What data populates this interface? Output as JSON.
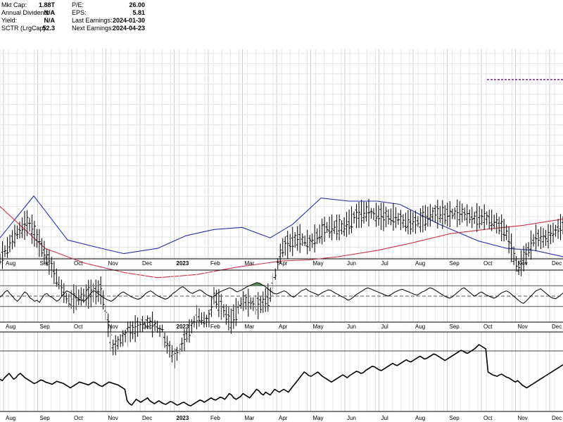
{
  "stats": {
    "col1": [
      {
        "label": "Mkt Cap:",
        "value": "1.88T"
      },
      {
        "label": "Annual Dividend:",
        "value": "N/A"
      },
      {
        "label": "Yield:",
        "value": "N/A"
      },
      {
        "label": "SCTR (LrgCap):",
        "value": "52.3"
      }
    ],
    "col2": [
      {
        "label": "P/E:",
        "value": "26.00"
      },
      {
        "label": "EPS:",
        "value": "5.81"
      },
      {
        "label": "Last Earnings:",
        "value": "2024-01-30"
      },
      {
        "label": "Next Earnings:",
        "value": "2024-04-23"
      }
    ]
  },
  "chart_data": [
    {
      "type": "ohlc",
      "title": "",
      "x_tick_labels": [
        "Aug",
        "Sep",
        "Oct",
        "Nov",
        "Dec",
        "2023",
        "Feb",
        "Mar",
        "Apr",
        "May",
        "Jun",
        "Jul",
        "Aug",
        "Sep",
        "Oct",
        "Nov",
        "Dec"
      ],
      "y_ticks_visible": false,
      "grid": true,
      "y_scale": "log",
      "close_path": [
        [
          0,
          80
        ],
        [
          0.03,
          55
        ],
        [
          0.05,
          45
        ],
        [
          0.08,
          75
        ],
        [
          0.12,
          120
        ],
        [
          0.15,
          115
        ],
        [
          0.18,
          110
        ],
        [
          0.2,
          165
        ],
        [
          0.23,
          150
        ],
        [
          0.26,
          140
        ],
        [
          0.28,
          145
        ],
        [
          0.31,
          175
        ],
        [
          0.33,
          155
        ],
        [
          0.35,
          135
        ],
        [
          0.37,
          140
        ],
        [
          0.38,
          115
        ],
        [
          0.41,
          140
        ],
        [
          0.43,
          120
        ],
        [
          0.46,
          125
        ],
        [
          0.48,
          115
        ],
        [
          0.5,
          70
        ],
        [
          0.53,
          60
        ],
        [
          0.55,
          65
        ],
        [
          0.58,
          50
        ],
        [
          0.61,
          50
        ],
        [
          0.63,
          40
        ],
        [
          0.65,
          35
        ],
        [
          0.68,
          40
        ],
        [
          0.7,
          40
        ],
        [
          0.72,
          45
        ],
        [
          0.74,
          45
        ],
        [
          0.77,
          37
        ],
        [
          0.79,
          38
        ],
        [
          0.82,
          36
        ],
        [
          0.84,
          41
        ],
        [
          0.86,
          40
        ],
        [
          0.88,
          45
        ],
        [
          0.9,
          55
        ],
        [
          0.92,
          90
        ],
        [
          0.95,
          60
        ],
        [
          0.97,
          60
        ],
        [
          1,
          48
        ]
      ],
      "series": [
        {
          "name": "",
          "color": "#2233aa",
          "points": [
            [
              0,
              60
            ],
            [
              0.06,
              20
            ],
            [
              0.12,
              62
            ],
            [
              0.18,
              70
            ],
            [
              0.22,
              75
            ],
            [
              0.28,
              70
            ],
            [
              0.33,
              58
            ],
            [
              0.38,
              52
            ],
            [
              0.43,
              50
            ],
            [
              0.48,
              60
            ],
            [
              0.52,
              47
            ],
            [
              0.57,
              22
            ],
            [
              0.62,
              25
            ],
            [
              0.67,
              25
            ],
            [
              0.71,
              28
            ],
            [
              0.78,
              47
            ],
            [
              0.85,
              63
            ],
            [
              0.9,
              70
            ],
            [
              0.95,
              72
            ],
            [
              1,
              78
            ]
          ]
        },
        {
          "name": "",
          "color": "#cc3344",
          "points": [
            [
              0,
              40
            ],
            [
              0.08,
              80
            ],
            [
              0.15,
              94
            ],
            [
              0.22,
              103
            ],
            [
              0.28,
              108
            ],
            [
              0.35,
              105
            ],
            [
              0.42,
              98
            ],
            [
              0.5,
              92
            ],
            [
              0.55,
              91
            ],
            [
              0.6,
              88
            ],
            [
              0.67,
              82
            ],
            [
              0.73,
              75
            ],
            [
              0.8,
              66
            ],
            [
              0.86,
              62
            ],
            [
              0.93,
              58
            ],
            [
              1,
              52
            ]
          ]
        }
      ],
      "resistance_line": {
        "color": "#7a1f8f",
        "style": "dashed",
        "x_range": [
          0.865,
          1
        ],
        "y": 100
      }
    },
    {
      "type": "line",
      "title": "",
      "x_tick_labels": [
        "Aug",
        "Sep",
        "Oct",
        "Nov",
        "Dec",
        "2023",
        "Feb",
        "Mar",
        "Apr",
        "May",
        "Jun",
        "Jul",
        "Aug",
        "Sep",
        "Oct",
        "Nov",
        "Dec"
      ],
      "ylim": [
        0,
        100
      ],
      "reference_lines": [
        70,
        50,
        30
      ],
      "values": [
        48,
        52,
        58,
        61,
        55,
        50,
        44,
        40,
        45,
        52,
        58,
        55,
        47,
        44,
        40,
        42,
        38,
        46,
        53,
        55,
        50,
        48,
        44,
        40,
        43,
        50,
        55,
        60,
        58,
        55,
        52,
        48,
        44,
        42,
        40,
        44,
        50,
        57,
        60,
        58,
        54,
        50,
        47,
        44,
        42,
        40,
        43,
        47,
        52,
        56,
        58,
        55,
        52,
        49,
        47,
        45,
        44,
        46,
        50,
        55,
        58,
        60,
        57,
        53,
        50,
        48,
        46,
        44,
        46,
        50,
        55,
        58,
        62,
        66,
        68,
        65,
        60,
        57,
        55,
        58,
        60,
        62,
        59,
        55,
        52,
        50,
        48,
        51,
        55,
        58,
        60,
        62,
        64,
        66,
        64,
        61,
        58,
        60,
        62,
        65,
        68,
        70,
        72,
        74,
        76,
        75,
        72,
        70,
        66,
        62,
        58,
        55,
        54,
        56,
        58,
        60,
        58,
        54,
        50,
        48,
        52,
        56,
        60,
        62,
        64,
        60,
        58,
        56,
        54,
        52,
        55,
        58,
        60,
        62,
        61,
        58,
        55,
        53,
        50,
        48,
        45,
        42,
        44,
        48,
        52,
        55,
        58,
        61,
        64,
        66,
        64,
        62,
        60,
        58,
        56,
        54,
        52,
        50,
        52,
        55,
        58,
        60,
        62,
        63,
        61,
        59,
        57,
        55,
        53,
        52,
        55,
        58,
        60,
        63,
        66,
        65,
        62,
        59,
        56,
        53,
        50,
        48,
        46,
        48,
        52,
        56,
        60,
        64,
        66,
        62,
        58,
        54,
        50,
        52,
        56,
        58,
        55,
        52,
        50,
        48,
        46,
        48,
        52,
        56,
        58,
        60,
        58,
        54,
        50,
        46,
        42,
        38,
        36,
        40,
        45,
        50,
        55,
        60,
        62,
        64,
        60,
        56,
        52,
        48,
        46,
        45,
        48,
        52,
        56
      ],
      "fill_above": {
        "threshold": 70,
        "color": "#3a7a3a"
      }
    },
    {
      "type": "line",
      "title": "",
      "x_tick_labels": [
        "Aug",
        "Sep",
        "Oct",
        "Nov",
        "Dec",
        "2023",
        "Feb",
        "Mar",
        "Apr",
        "May",
        "Jun",
        "Jul",
        "Aug",
        "Sep",
        "Oct",
        "Nov",
        "Dec"
      ],
      "y_ticks_visible": false,
      "values": [
        50,
        48,
        52,
        55,
        58,
        54,
        50,
        52,
        56,
        58,
        55,
        52,
        50,
        48,
        46,
        44,
        45,
        47,
        49,
        48,
        46,
        45,
        44,
        43,
        45,
        47,
        46,
        45,
        44,
        42,
        40,
        38,
        40,
        42,
        44,
        46,
        45,
        44,
        43,
        42,
        44,
        46,
        45,
        43,
        41,
        40,
        42,
        44,
        46,
        45,
        44,
        43,
        42,
        40,
        38,
        36,
        20,
        16,
        14,
        18,
        22,
        20,
        18,
        20,
        22,
        24,
        20,
        18,
        16,
        18,
        20,
        18,
        16,
        15,
        17,
        19,
        18,
        16,
        14,
        15,
        17,
        18,
        16,
        14,
        13,
        15,
        17,
        19,
        21,
        20,
        18,
        20,
        22,
        24,
        22,
        21,
        23,
        25,
        24,
        22,
        26,
        30,
        28,
        24,
        22,
        24,
        26,
        30,
        28,
        26,
        24,
        28,
        32,
        36,
        34,
        30,
        28,
        32,
        30,
        28,
        32,
        36,
        34,
        32,
        34,
        36,
        34,
        32,
        36,
        40,
        44,
        48,
        52,
        56,
        60,
        58,
        55,
        54,
        56,
        58,
        60,
        57,
        54,
        52,
        50,
        48,
        46,
        48,
        50,
        52,
        54,
        56,
        54,
        52,
        55,
        57,
        59,
        61,
        60,
        58,
        59,
        62,
        64,
        66,
        68,
        67,
        65,
        63,
        62,
        64,
        66,
        68,
        70,
        72,
        70,
        69,
        71,
        73,
        75,
        77,
        75,
        74,
        76,
        78,
        80,
        82,
        80,
        78,
        79,
        81,
        83,
        85,
        84,
        82,
        80,
        78,
        76,
        78,
        80,
        82,
        84,
        86,
        88,
        90,
        89,
        87,
        86,
        88,
        90,
        92,
        95,
        98,
        96,
        94,
        92,
        60,
        58,
        56,
        55,
        54,
        56,
        57,
        55,
        53,
        52,
        50,
        48,
        46,
        48,
        45,
        42,
        40,
        38,
        40,
        42,
        44,
        46,
        48,
        50,
        52,
        54,
        56,
        58,
        60,
        62,
        64,
        66,
        68,
        70
      ]
    }
  ]
}
